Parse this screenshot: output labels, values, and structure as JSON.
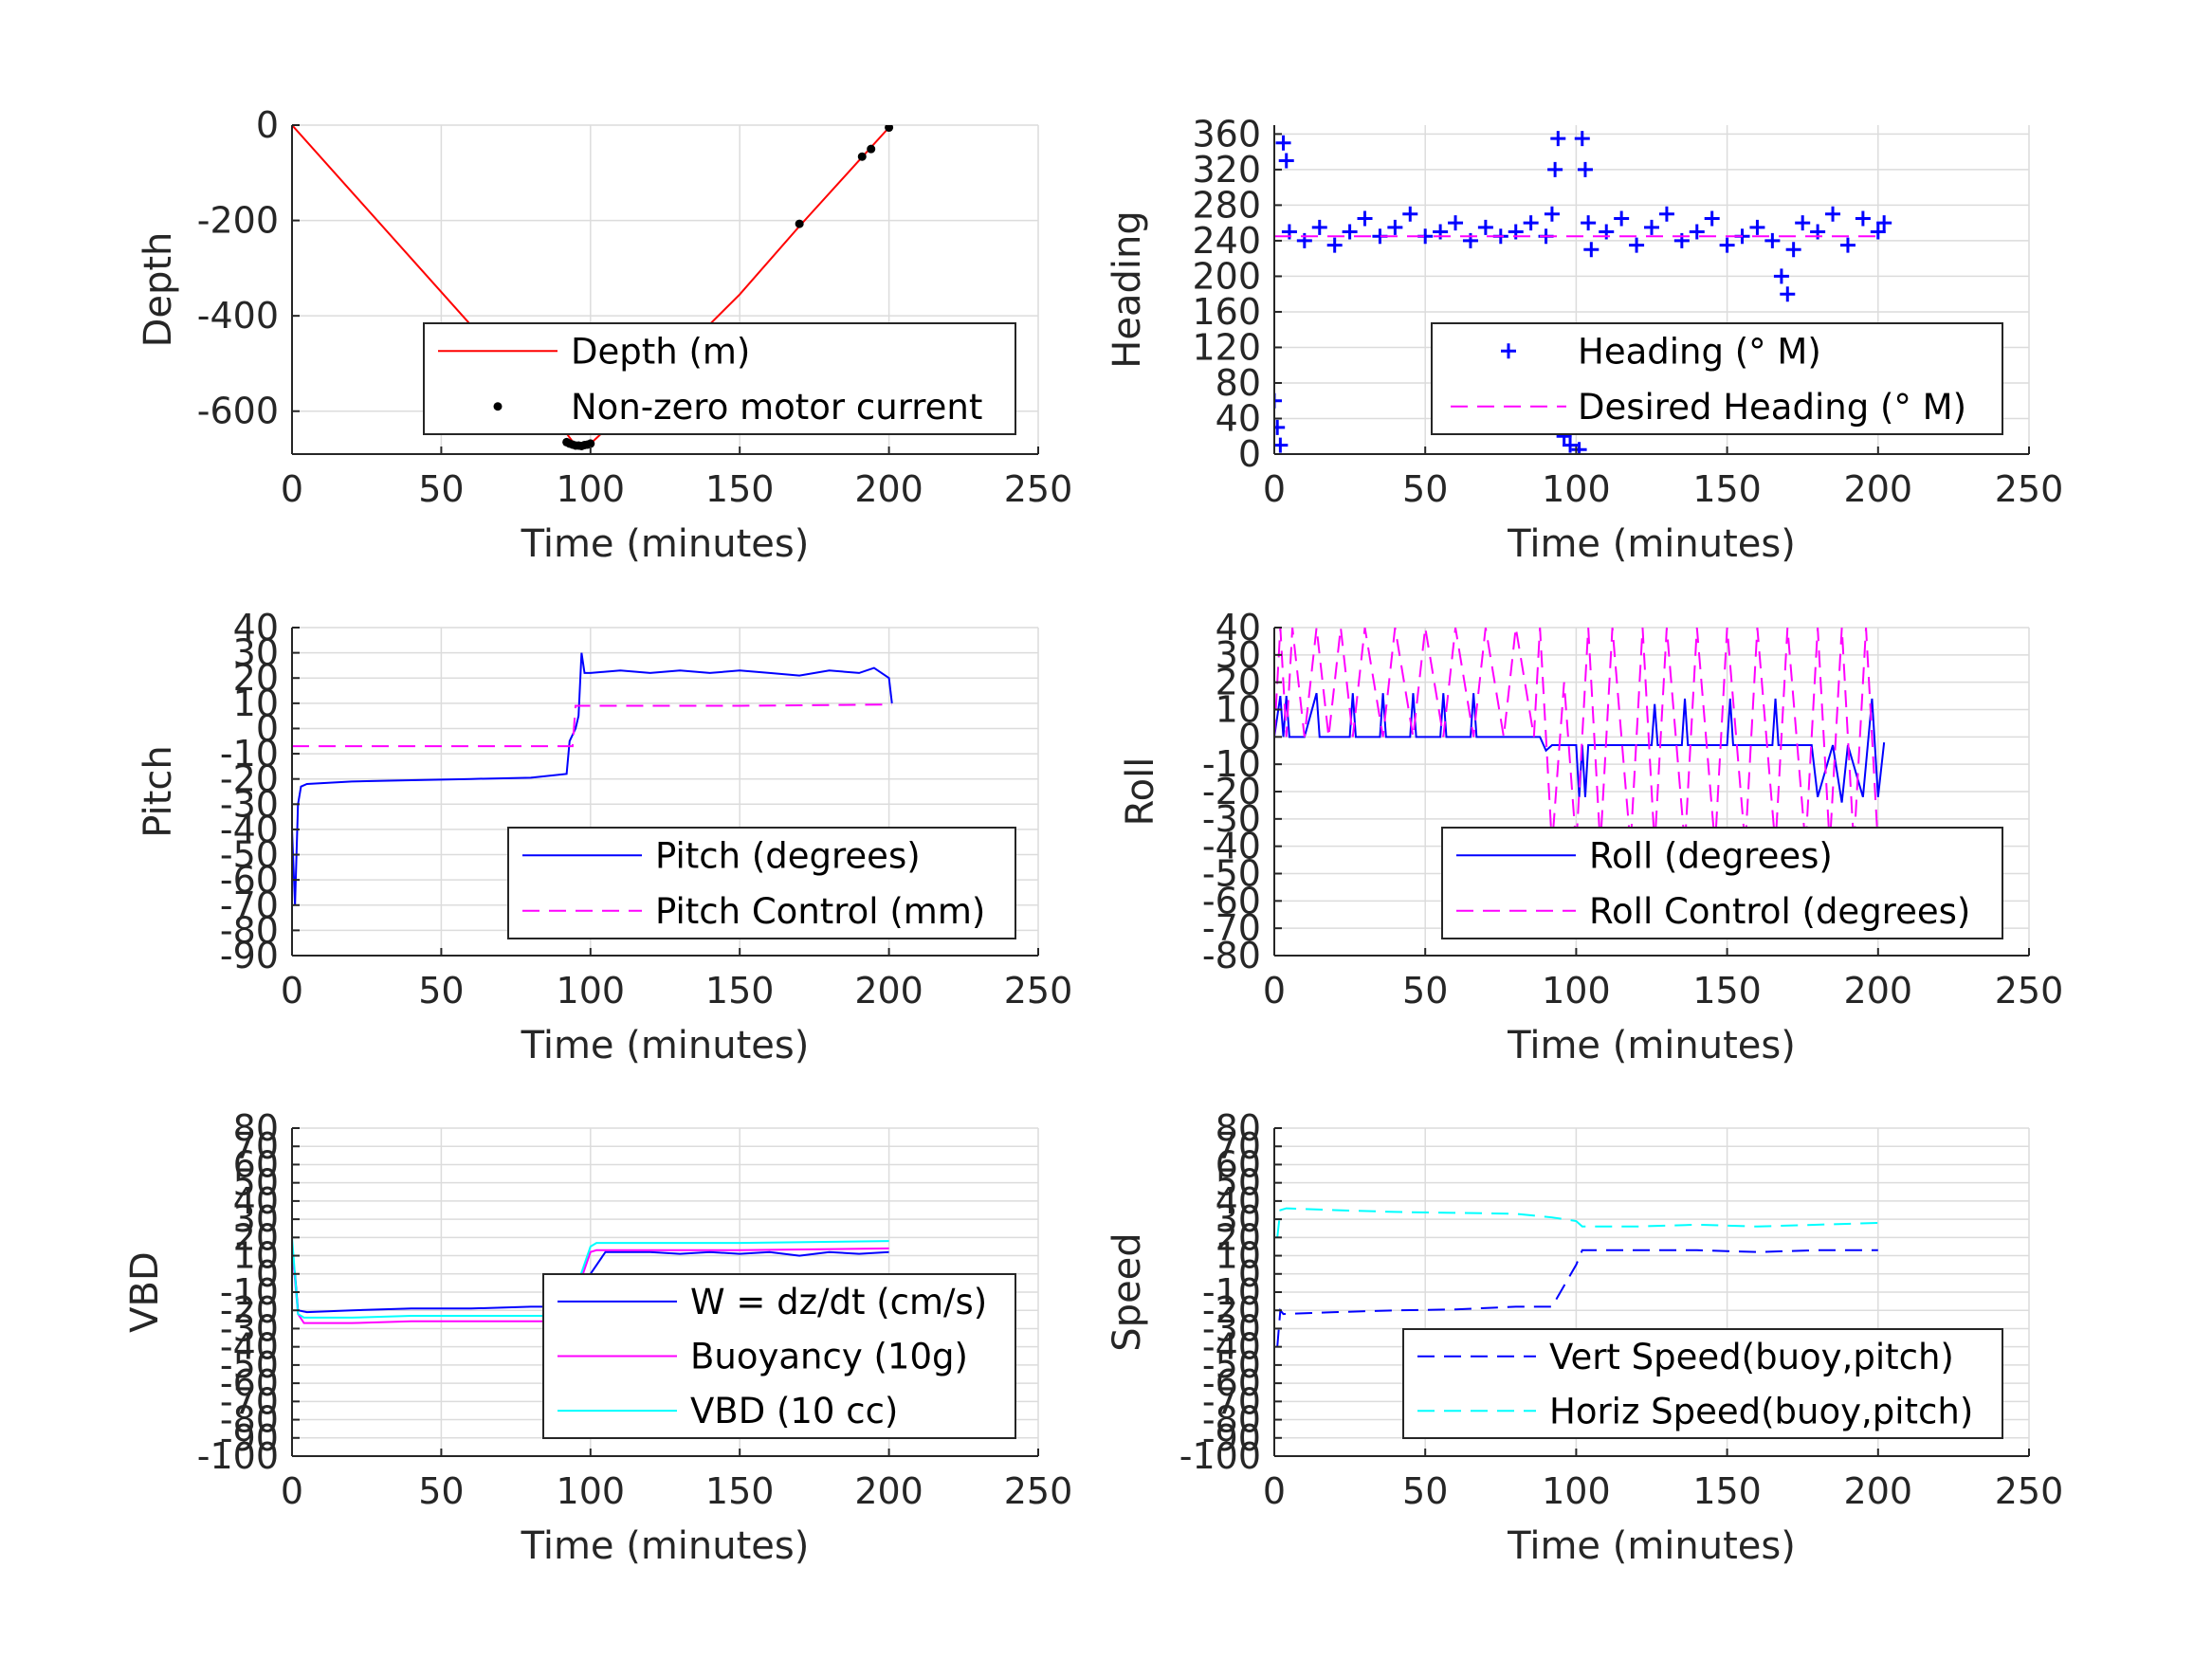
{
  "chart_data": [
    {
      "id": "depth",
      "type": "line",
      "xlabel": "Time (minutes)",
      "ylabel": "Depth",
      "xlim": [
        0,
        250
      ],
      "ylim": [
        -690,
        0
      ],
      "xticks": [
        0,
        50,
        100,
        150,
        200,
        250
      ],
      "yticks": [
        0,
        -200,
        -400,
        -600
      ],
      "xtick_labels": [
        "0",
        "50",
        "100",
        "150",
        "200",
        "250"
      ],
      "ytick_labels": [
        "0",
        "-200",
        "-400",
        "-600"
      ],
      "grid": true,
      "legend_location": "bottom-right",
      "series": [
        {
          "name": "Depth (m)",
          "style": "line",
          "color": "#ff0000",
          "x": [
            0,
            20,
            40,
            60,
            80,
            90,
            95,
            100,
            110,
            130,
            150,
            170,
            190,
            200
          ],
          "y": [
            0,
            -140,
            -280,
            -420,
            -560,
            -630,
            -672,
            -668,
            -610,
            -480,
            -355,
            -212,
            -74,
            -5
          ]
        },
        {
          "name": "Non-zero motor current",
          "style": "dots",
          "color": "#000000",
          "x": [
            92,
            93,
            94,
            95,
            96,
            97,
            98,
            99,
            100,
            170,
            191,
            194,
            200
          ],
          "y": [
            -665,
            -668,
            -670,
            -672,
            -672,
            -673,
            -671,
            -670,
            -668,
            -207,
            -66,
            -50,
            -5
          ]
        }
      ]
    },
    {
      "id": "heading",
      "type": "scatter",
      "xlabel": "Time (minutes)",
      "ylabel": "Heading",
      "xlim": [
        0,
        250
      ],
      "ylim": [
        0,
        370
      ],
      "xticks": [
        0,
        50,
        100,
        150,
        200,
        250
      ],
      "yticks": [
        0,
        40,
        80,
        120,
        160,
        200,
        240,
        280,
        320,
        360
      ],
      "xtick_labels": [
        "0",
        "50",
        "100",
        "150",
        "200",
        "250"
      ],
      "ytick_labels": [
        "0",
        "40",
        "80",
        "120",
        "160",
        "200",
        "240",
        "280",
        "320",
        "360"
      ],
      "grid": true,
      "legend_location": "bottom-right",
      "series": [
        {
          "name": "Heading (° M)",
          "style": "plus",
          "color": "#0000ff",
          "x": [
            0,
            1,
            2,
            3,
            4,
            5,
            10,
            15,
            20,
            25,
            30,
            35,
            40,
            45,
            50,
            55,
            60,
            65,
            70,
            75,
            80,
            85,
            90,
            92,
            93,
            94,
            95,
            96,
            97,
            98,
            100,
            101,
            102,
            103,
            104,
            105,
            110,
            115,
            120,
            125,
            130,
            135,
            140,
            145,
            150,
            155,
            160,
            165,
            168,
            170,
            172,
            175,
            180,
            185,
            190,
            195,
            200,
            202
          ],
          "y": [
            60,
            30,
            10,
            350,
            330,
            250,
            240,
            255,
            235,
            250,
            265,
            245,
            255,
            270,
            245,
            250,
            260,
            240,
            255,
            245,
            250,
            260,
            245,
            270,
            320,
            355,
            30,
            20,
            50,
            10,
            40,
            5,
            355,
            320,
            260,
            230,
            250,
            265,
            235,
            255,
            270,
            240,
            250,
            265,
            235,
            245,
            255,
            240,
            200,
            180,
            230,
            260,
            250,
            270,
            235,
            265,
            250,
            260
          ]
        },
        {
          "name": "Desired Heading (° M)",
          "style": "dashed",
          "color": "#ff00ff",
          "x": [
            0,
            202
          ],
          "y": [
            245,
            245
          ]
        }
      ]
    },
    {
      "id": "pitch",
      "type": "line",
      "xlabel": "Time (minutes)",
      "ylabel": "Pitch",
      "xlim": [
        0,
        250
      ],
      "ylim": [
        -90,
        40
      ],
      "xticks": [
        0,
        50,
        100,
        150,
        200,
        250
      ],
      "yticks": [
        40,
        30,
        20,
        10,
        0,
        -10,
        -20,
        -30,
        -40,
        -50,
        -60,
        -70,
        -80,
        -90
      ],
      "xtick_labels": [
        "0",
        "50",
        "100",
        "150",
        "200",
        "250"
      ],
      "ytick_labels": [
        "40",
        "30",
        "20",
        "10",
        "0",
        "-10",
        "-20",
        "-30",
        "-40",
        "-50",
        "-60",
        "-70",
        "-80",
        "-90"
      ],
      "grid": true,
      "legend_location": "bottom-right",
      "series": [
        {
          "name": "Pitch (degrees)",
          "style": "line",
          "color": "#0000ff",
          "x": [
            0,
            1,
            2,
            3,
            5,
            20,
            40,
            60,
            80,
            92,
            93,
            95,
            96,
            97,
            98,
            100,
            110,
            120,
            130,
            140,
            150,
            160,
            170,
            180,
            190,
            195,
            200,
            201
          ],
          "y": [
            -40,
            -70,
            -30,
            -23,
            -22,
            -21,
            -20.5,
            -20,
            -19.5,
            -18,
            -5,
            0,
            5,
            30,
            22,
            22,
            23,
            22,
            23,
            22,
            23,
            22,
            21,
            23,
            22,
            24,
            20,
            10
          ]
        },
        {
          "name": "Pitch Control (mm)",
          "style": "dashed",
          "color": "#ff00ff",
          "x": [
            0,
            94,
            95,
            150,
            201
          ],
          "y": [
            -7,
            -7,
            9,
            9,
            9.5
          ]
        }
      ]
    },
    {
      "id": "roll",
      "type": "line",
      "xlabel": "Time (minutes)",
      "ylabel": "Roll",
      "xlim": [
        0,
        250
      ],
      "ylim": [
        -80,
        40
      ],
      "xticks": [
        0,
        50,
        100,
        150,
        200,
        250
      ],
      "yticks": [
        40,
        30,
        20,
        10,
        0,
        -10,
        -20,
        -30,
        -40,
        -50,
        -60,
        -70,
        -80
      ],
      "xtick_labels": [
        "0",
        "50",
        "100",
        "150",
        "200",
        "250"
      ],
      "ytick_labels": [
        "40",
        "30",
        "20",
        "10",
        "0",
        "-10",
        "-20",
        "-30",
        "-40",
        "-50",
        "-60",
        "-70",
        "-80"
      ],
      "grid": true,
      "legend_location": "bottom-right",
      "series": [
        {
          "name": "Roll (degrees)",
          "style": "line",
          "color": "#0000ff",
          "x": [
            0,
            2,
            3,
            4,
            5,
            10,
            14,
            15,
            16,
            25,
            26,
            27,
            35,
            36,
            37,
            45,
            46,
            47,
            55,
            56,
            57,
            65,
            66,
            67,
            88,
            90,
            92,
            100,
            101,
            102,
            103,
            104,
            110,
            125,
            126,
            127,
            135,
            136,
            137,
            150,
            151,
            152,
            165,
            166,
            167,
            178,
            180,
            185,
            188,
            190,
            195,
            198,
            200,
            202
          ],
          "y": [
            0,
            15,
            0,
            15,
            0,
            0,
            16,
            0,
            0,
            0,
            16,
            0,
            0,
            16,
            0,
            0,
            16,
            0,
            0,
            16,
            0,
            0,
            16,
            0,
            0,
            -5,
            -3,
            -3,
            -22,
            -3,
            -22,
            -3,
            -3,
            -3,
            12,
            -3,
            -3,
            14,
            -3,
            -3,
            14,
            -3,
            -3,
            14,
            -3,
            -3,
            -22,
            -3,
            -24,
            -3,
            -22,
            14,
            -22,
            -2
          ]
        },
        {
          "name": "Roll Control (degrees)",
          "style": "dashed",
          "color": "#ff00ff",
          "x": [
            0,
            2,
            4,
            6,
            10,
            14,
            18,
            22,
            26,
            30,
            36,
            40,
            46,
            50,
            56,
            60,
            66,
            70,
            76,
            80,
            86,
            88,
            92,
            96,
            100,
            104,
            108,
            112,
            118,
            122,
            126,
            130,
            136,
            140,
            146,
            150,
            156,
            160,
            166,
            170,
            176,
            180,
            184,
            188,
            192,
            196,
            200
          ],
          "y": [
            0,
            40,
            0,
            40,
            0,
            40,
            0,
            40,
            0,
            40,
            0,
            40,
            0,
            40,
            0,
            40,
            0,
            40,
            0,
            40,
            0,
            40,
            -40,
            20,
            -40,
            40,
            -40,
            40,
            -40,
            40,
            -40,
            40,
            -40,
            40,
            -40,
            40,
            -40,
            40,
            -40,
            40,
            -40,
            40,
            -40,
            40,
            -40,
            40,
            -40
          ]
        }
      ]
    },
    {
      "id": "vbd",
      "type": "line",
      "xlabel": "Time (minutes)",
      "ylabel": "VBD",
      "xlim": [
        0,
        250
      ],
      "ylim": [
        -100,
        80
      ],
      "xticks": [
        0,
        50,
        100,
        150,
        200,
        250
      ],
      "yticks": [
        80,
        70,
        60,
        50,
        40,
        30,
        20,
        10,
        0,
        -10,
        -20,
        -30,
        -40,
        -50,
        -60,
        -70,
        -80,
        -90,
        -100
      ],
      "xtick_labels": [
        "0",
        "50",
        "100",
        "150",
        "200",
        "250"
      ],
      "ytick_labels": [
        "80",
        "70",
        "60",
        "50",
        "40",
        "30",
        "20",
        "10",
        "0",
        "-10",
        "-20",
        "-30",
        "-40",
        "-50",
        "-60",
        "-70",
        "-80",
        "-90",
        "-100"
      ],
      "grid": true,
      "legend_location": "bottom-right",
      "series": [
        {
          "name": "W = dz/dt (cm/s)",
          "style": "line",
          "color": "#0000ff",
          "x": [
            0,
            1,
            2,
            5,
            20,
            40,
            60,
            80,
            90,
            95,
            100,
            105,
            110,
            120,
            130,
            140,
            150,
            160,
            170,
            180,
            190,
            200
          ],
          "y": [
            10,
            0,
            -20,
            -21,
            -20,
            -19,
            -19,
            -18,
            -18,
            -15,
            0,
            12,
            12,
            12,
            11,
            12,
            11,
            12,
            10,
            12,
            11,
            12
          ]
        },
        {
          "name": "Buoyancy (10g)",
          "style": "line",
          "color": "#ff00ff",
          "x": [
            0,
            2,
            4,
            20,
            40,
            60,
            80,
            92,
            100,
            102,
            150,
            200
          ],
          "y": [
            15,
            -22,
            -27,
            -27,
            -26,
            -26,
            -26,
            -26,
            12,
            13,
            13,
            14
          ]
        },
        {
          "name": "VBD (10 cc)",
          "style": "line",
          "color": "#00ffff",
          "x": [
            0,
            2,
            4,
            20,
            40,
            60,
            80,
            92,
            100,
            102,
            150,
            200
          ],
          "y": [
            20,
            -22,
            -24,
            -24,
            -23,
            -23,
            -23,
            -23,
            15,
            17,
            17,
            18
          ]
        }
      ]
    },
    {
      "id": "speed",
      "type": "line",
      "xlabel": "Time (minutes)",
      "ylabel": "Speed",
      "xlim": [
        0,
        250
      ],
      "ylim": [
        -100,
        80
      ],
      "xticks": [
        0,
        50,
        100,
        150,
        200,
        250
      ],
      "yticks": [
        80,
        70,
        60,
        50,
        40,
        30,
        20,
        10,
        0,
        -10,
        -20,
        -30,
        -40,
        -50,
        -60,
        -70,
        -80,
        -90,
        -100
      ],
      "xtick_labels": [
        "0",
        "50",
        "100",
        "150",
        "200",
        "250"
      ],
      "ytick_labels": [
        "80",
        "70",
        "60",
        "50",
        "40",
        "30",
        "20",
        "10",
        "0",
        "-10",
        "-20",
        "-30",
        "-40",
        "-50",
        "-60",
        "-70",
        "-80",
        "-90",
        "-100"
      ],
      "grid": true,
      "legend_location": "bottom-right",
      "series": [
        {
          "name": "Vert Speed(buoy,pitch)",
          "style": "dashed",
          "color": "#0000ff",
          "x": [
            1,
            2,
            3,
            20,
            40,
            60,
            80,
            92,
            100,
            102,
            120,
            140,
            160,
            180,
            200
          ],
          "y": [
            -40,
            -20,
            -22,
            -21,
            -20,
            -19.5,
            -18,
            -18,
            5,
            13,
            13,
            13,
            12,
            13,
            13
          ]
        },
        {
          "name": "Horiz Speed(buoy,pitch)",
          "style": "dashed",
          "color": "#00ffff",
          "x": [
            1,
            2,
            4,
            20,
            40,
            60,
            80,
            92,
            100,
            102,
            120,
            140,
            160,
            180,
            200
          ],
          "y": [
            20,
            35,
            36,
            35,
            34,
            33.5,
            33,
            31,
            29,
            26,
            26,
            27,
            26,
            27,
            28
          ]
        }
      ]
    }
  ]
}
